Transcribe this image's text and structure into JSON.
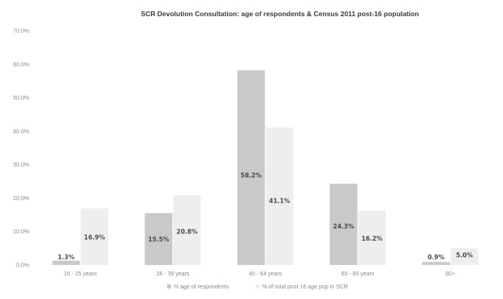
{
  "chart_data": {
    "type": "bar",
    "title": "SCR Devolution Consultation: age of respondents & Census 2011 post-16 population",
    "categories": [
      "16 - 25 years",
      "26 - 39 years",
      "40 - 64 years",
      "65 - 80 years",
      "80+"
    ],
    "y_ticks": [
      "0.0%",
      "10.0%",
      "20.0%",
      "30.0%",
      "40.0%",
      "50.0%",
      "60.0%",
      "70.0%"
    ],
    "ylim": [
      0,
      70
    ],
    "grid": false,
    "legend_position": "bottom",
    "series": [
      {
        "name": "% age of respondents",
        "values": [
          1.3,
          15.5,
          58.2,
          24.3,
          0.9
        ],
        "labels": [
          "1.3%",
          "15.5%",
          "58.2%",
          "24.3%",
          "0.9%"
        ],
        "color": "#c9c9c9"
      },
      {
        "name": "% of total post-16 age pop in SCR",
        "values": [
          16.9,
          20.8,
          41.1,
          16.2,
          5.0
        ],
        "labels": [
          "16.9%",
          "20.8%",
          "41.1%",
          "16.2%",
          "5.0%"
        ],
        "color": "#eeeeee"
      }
    ]
  }
}
